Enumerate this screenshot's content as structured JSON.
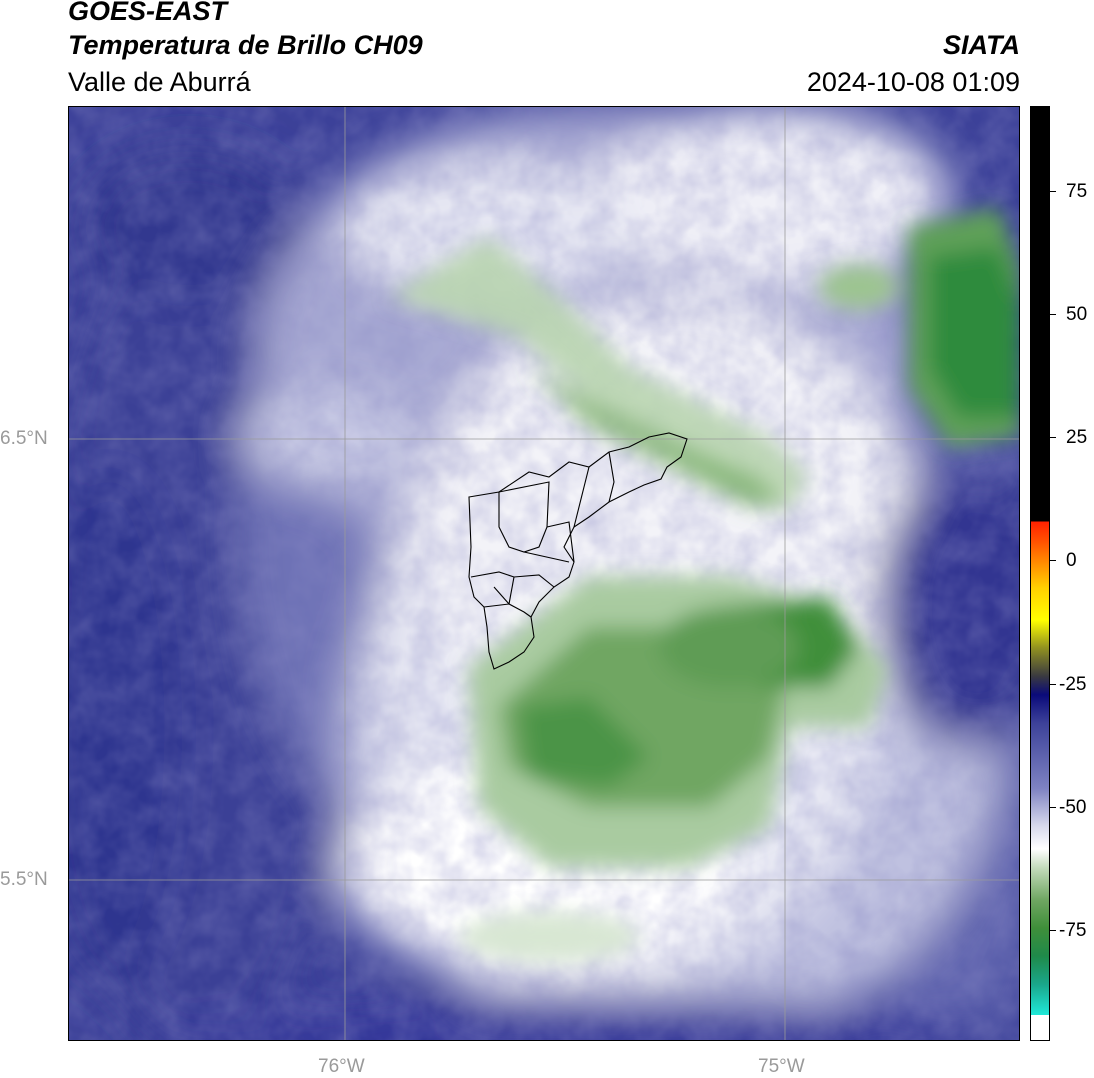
{
  "header": {
    "satellite": "GOES-EAST",
    "product": "Temperatura de Brillo CH09",
    "region": "Valle de Aburrá",
    "agency": "SIATA",
    "datetime": "2024-10-08 01:09"
  },
  "map": {
    "lat_labels": [
      "6.5°N",
      "5.5°N"
    ],
    "lon_labels": [
      "76°W",
      "75°W"
    ],
    "overlay": "municipal boundaries of Valle de Aburrá"
  },
  "colorbar": {
    "tick_labels": [
      "75",
      "50",
      "25",
      "0",
      "-25",
      "-50",
      "-75"
    ],
    "colors": {
      "black_band": "#000000",
      "red": "#ff2000",
      "orange": "#ff8000",
      "yellow": "#ffff00",
      "dark_blue": "#0a0a7a",
      "mid_blue": "#4a4fa8",
      "light_lavender": "#d6d8ec",
      "white": "#ffffff",
      "green": "#3f8f3a",
      "dark_green": "#1f7a3a",
      "cyan": "#20e8d8"
    }
  }
}
